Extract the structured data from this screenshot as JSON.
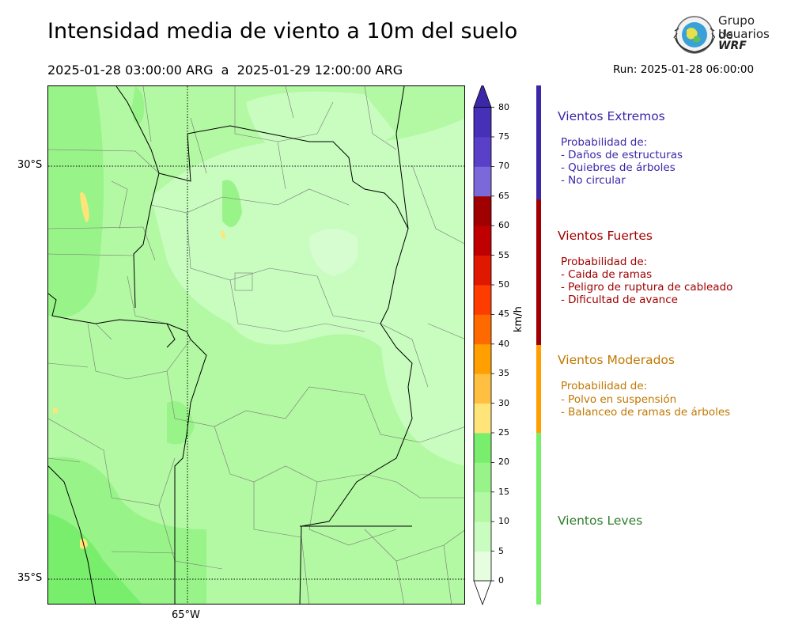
{
  "header": {
    "title": "Intensidad media de viento a 10m del suelo",
    "period": "2025-01-28 03:00:00 ARG  a  2025-01-29 12:00:00 ARG",
    "run": "Run: 2025-01-28 06:00:00"
  },
  "logo": {
    "line1": "Grupo de",
    "line2": "Usuarios",
    "line3": "WRF"
  },
  "map": {
    "lat_labels": [
      "30°S",
      "35°S"
    ],
    "lon_labels": [
      "65°W"
    ],
    "colors": {
      "0-5": "#e6fde0",
      "5-10": "#c8fdbf",
      "10-15": "#b3f8a3",
      "15-20": "#98f488",
      "20-25": "#78ee6c",
      "25-30": "#ffe47a"
    }
  },
  "colorbar": {
    "unit": "km/h",
    "ticks": [
      "0",
      "5",
      "10",
      "15",
      "20",
      "25",
      "30",
      "35",
      "40",
      "45",
      "50",
      "55",
      "60",
      "65",
      "70",
      "75",
      "80"
    ],
    "colors": [
      "#e6fde0",
      "#c8fdbf",
      "#b3f8a3",
      "#98f488",
      "#78ee6c",
      "#ffe47a",
      "#ffbf40",
      "#ffa000",
      "#ff6a00",
      "#ff3c00",
      "#e01800",
      "#c00000",
      "#a00000",
      "#7b68d9",
      "#5a40c8",
      "#4630b8",
      "#3a28a8"
    ]
  },
  "legend": {
    "extremos": {
      "title": "Vientos Extremos",
      "color": "#3a28a8",
      "lines": [
        "Probabilidad de:",
        "- Daños de estructuras",
        "- Quiebres de árboles",
        "- No circular"
      ]
    },
    "fuertes": {
      "title": "Vientos Fuertes",
      "color": "#a00000",
      "lines": [
        "Probabilidad de:",
        "- Caida de ramas",
        "- Peligro de ruptura de cableado",
        "- Dificultad de avance"
      ]
    },
    "moderados": {
      "title": "Vientos Moderados",
      "color": "#c07800",
      "bar_color": "#ffa000",
      "lines": [
        "Probabilidad de:",
        "- Polvo en suspensión",
        "- Balanceo de ramas de árboles"
      ]
    },
    "leves": {
      "title": "Vientos Leves",
      "color": "#2e7d2e",
      "bar_color": "#78ee6c"
    }
  }
}
